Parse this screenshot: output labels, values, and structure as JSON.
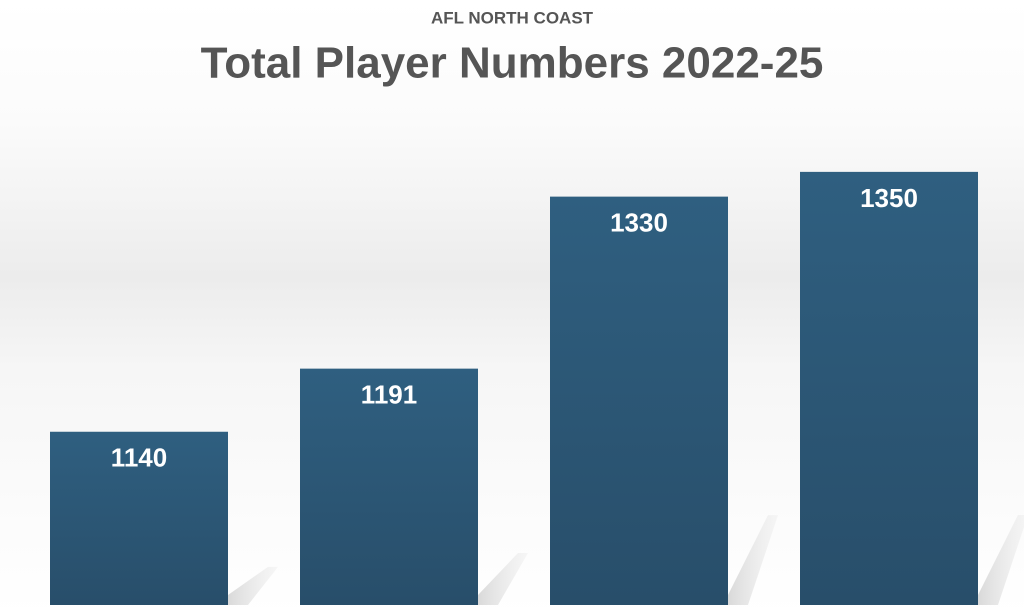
{
  "chart_data": {
    "type": "bar",
    "subtitle": "AFL NORTH COAST",
    "title": "Total Player Numbers 2022-25",
    "values": [
      1140,
      1191,
      1330,
      1350
    ],
    "color": "#2d5b7c",
    "ylim": [
      1000,
      1400
    ]
  }
}
